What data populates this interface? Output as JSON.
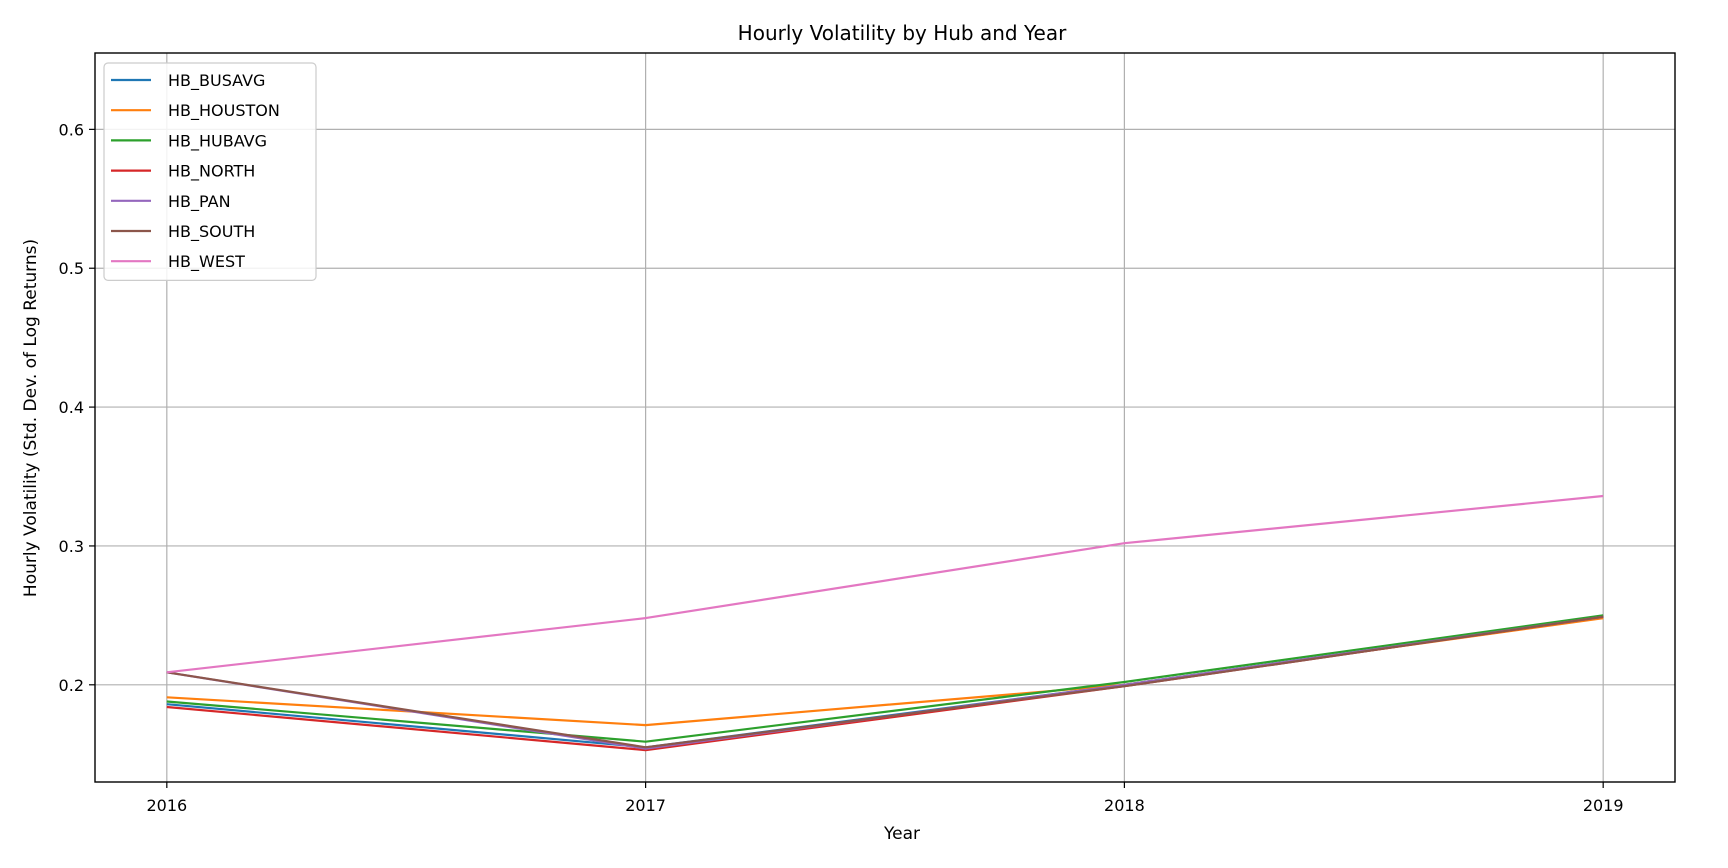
{
  "chart_data": {
    "type": "line",
    "title": "Hourly Volatility by Hub and Year",
    "xlabel": "Year",
    "ylabel": "Hourly Volatility (Std. Dev. of Log Returns)",
    "x": [
      "2016",
      "2017",
      "2018",
      "2019"
    ],
    "xlim": [
      2015.85,
      2019.15
    ],
    "ylim": [
      0.13,
      0.655
    ],
    "yticks": [
      0.2,
      0.3,
      0.4,
      0.5,
      0.6
    ],
    "yticklabels": [
      "0.2",
      "0.3",
      "0.4",
      "0.5",
      "0.6"
    ],
    "grid": true,
    "legend_position": "top-left",
    "series": [
      {
        "name": "HB_BUSAVG",
        "color": "#1f77b4",
        "values": [
          0.186,
          0.155,
          0.2,
          0.249
        ]
      },
      {
        "name": "HB_HOUSTON",
        "color": "#ff7f0e",
        "values": [
          0.191,
          0.171,
          0.2,
          0.248
        ]
      },
      {
        "name": "HB_HUBAVG",
        "color": "#2ca02c",
        "values": [
          0.188,
          0.159,
          0.202,
          0.25
        ]
      },
      {
        "name": "HB_NORTH",
        "color": "#d62728",
        "values": [
          0.184,
          0.153,
          0.199,
          0.249
        ]
      },
      {
        "name": "HB_PAN",
        "color": "#9467bd",
        "values": [
          0.209,
          0.154,
          0.2,
          0.249
        ]
      },
      {
        "name": "HB_SOUTH",
        "color": "#8c564b",
        "values": [
          0.209,
          0.155,
          0.199,
          0.249
        ]
      },
      {
        "name": "HB_WEST",
        "color": "#e377c2",
        "values": [
          0.209,
          0.248,
          0.302,
          0.336
        ]
      }
    ]
  }
}
